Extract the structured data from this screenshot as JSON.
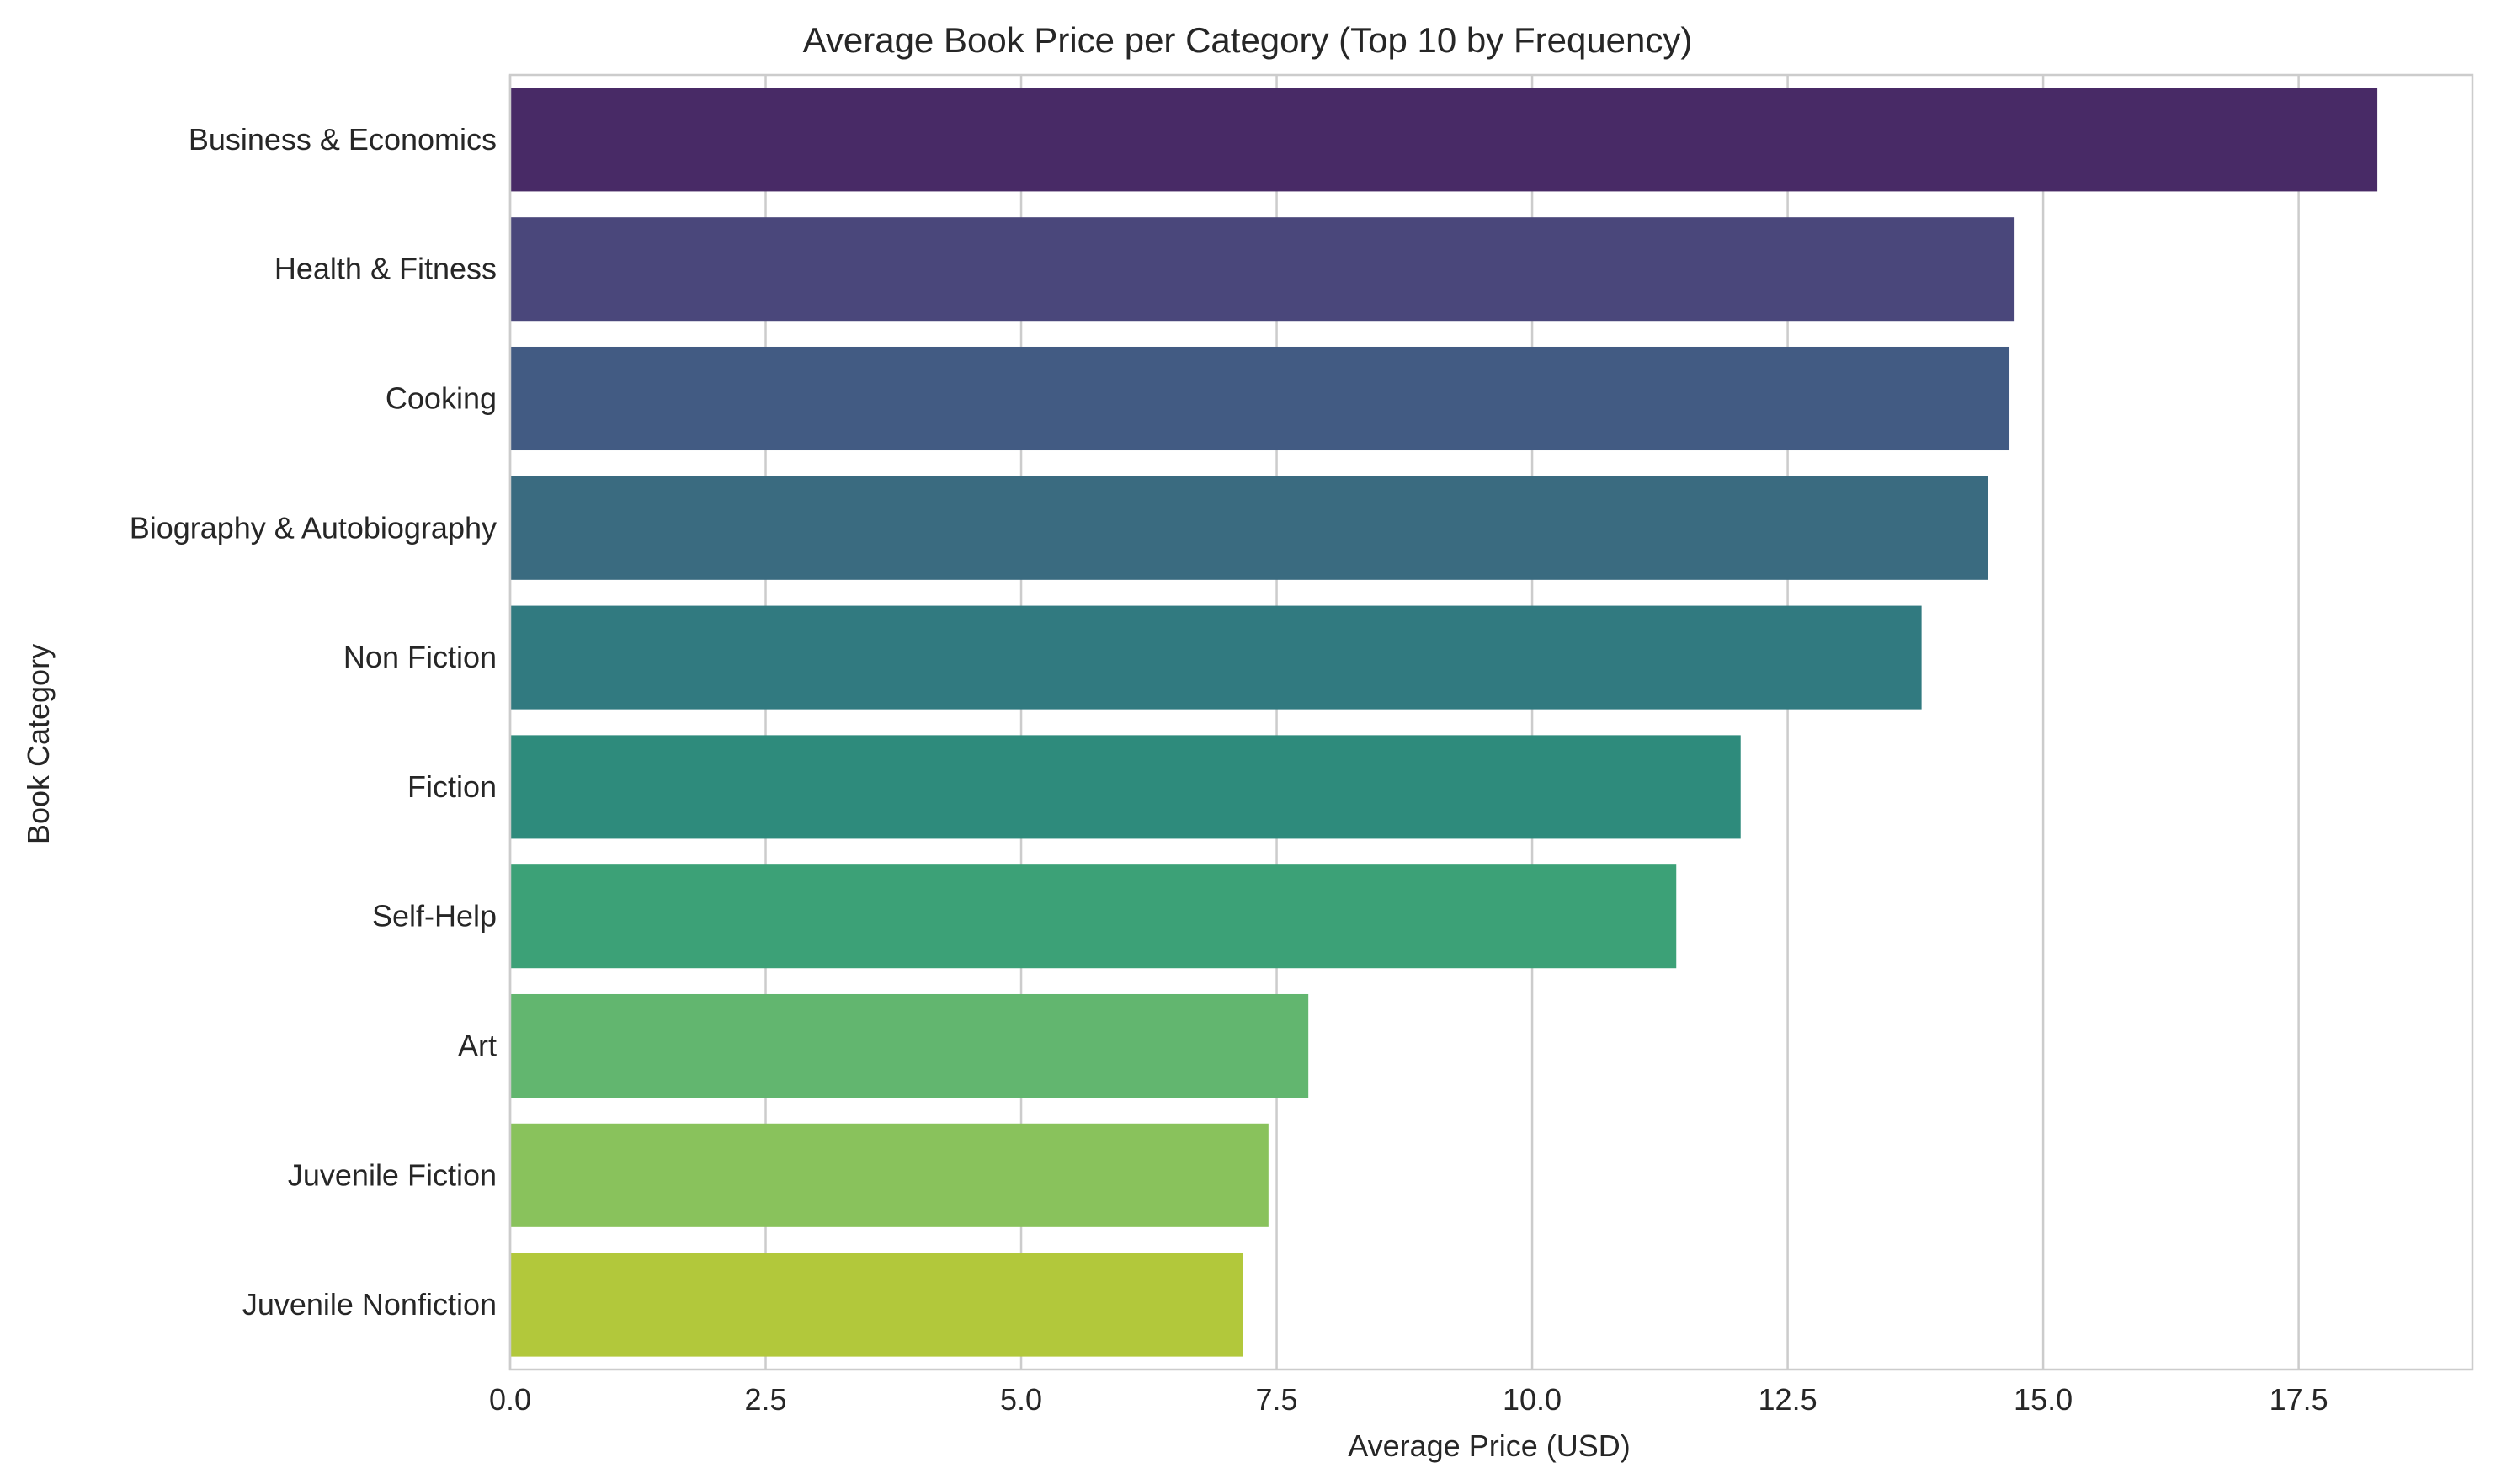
{
  "chart_data": {
    "type": "bar",
    "orientation": "horizontal",
    "title": "Average Book Price per Category (Top 10 by Frequency)",
    "xlabel": "Average Price (USD)",
    "ylabel": "Book Category",
    "xlim": [
      0,
      19.2
    ],
    "xticks": [
      0.0,
      2.5,
      5.0,
      7.5,
      10.0,
      12.5,
      15.0,
      17.5
    ],
    "xtick_labels": [
      "0.0",
      "2.5",
      "5.0",
      "7.5",
      "10.0",
      "12.5",
      "15.0",
      "17.5"
    ],
    "grid": true,
    "categories": [
      "Business & Economics",
      "Health & Fitness",
      "Cooking",
      "Biography & Autobiography",
      "Non Fiction",
      "Fiction",
      "Self-Help",
      "Art",
      "Juvenile Fiction",
      "Juvenile Nonfiction"
    ],
    "values": [
      18.27,
      14.72,
      14.67,
      14.46,
      13.81,
      12.04,
      11.41,
      7.81,
      7.42,
      7.17
    ],
    "colors": [
      "#482a66",
      "#4a477b",
      "#425b83",
      "#3a6b80",
      "#317a80",
      "#2e8b7c",
      "#3ca177",
      "#62b66f",
      "#89c25c",
      "#b2c83b"
    ]
  }
}
